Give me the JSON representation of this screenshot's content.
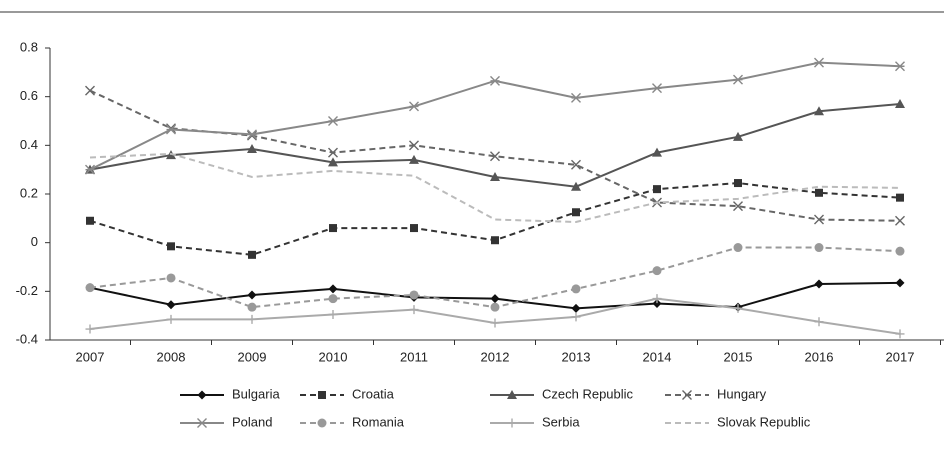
{
  "chart_data": {
    "type": "line",
    "categories": [
      "2007",
      "2008",
      "2009",
      "2010",
      "2011",
      "2012",
      "2013",
      "2014",
      "2015",
      "2016",
      "2017"
    ],
    "ylim": [
      -0.4,
      0.8
    ],
    "yticks": [
      -0.4,
      -0.2,
      0,
      0.2,
      0.4,
      0.6,
      0.8
    ],
    "grid": false,
    "legend": "bottom",
    "series": [
      {
        "name": "Bulgaria",
        "color": "#111111",
        "dash": false,
        "marker": "diamond",
        "values": [
          -0.185,
          -0.255,
          -0.215,
          -0.19,
          -0.225,
          -0.23,
          -0.27,
          -0.25,
          -0.265,
          -0.17,
          -0.165
        ]
      },
      {
        "name": "Croatia",
        "color": "#333333",
        "dash": true,
        "marker": "square",
        "values": [
          0.09,
          -0.015,
          -0.05,
          0.06,
          0.06,
          0.01,
          0.125,
          0.22,
          0.245,
          0.205,
          0.185
        ]
      },
      {
        "name": "Czech Republic",
        "color": "#555555",
        "dash": false,
        "marker": "triangle",
        "values": [
          0.3,
          0.36,
          0.385,
          0.33,
          0.34,
          0.27,
          0.23,
          0.37,
          0.435,
          0.54,
          0.57
        ]
      },
      {
        "name": "Hungary",
        "color": "#666666",
        "dash": true,
        "marker": "x",
        "values": [
          0.625,
          0.47,
          0.44,
          0.37,
          0.4,
          0.355,
          0.32,
          0.165,
          0.15,
          0.095,
          0.09
        ]
      },
      {
        "name": "Poland",
        "color": "#888888",
        "dash": false,
        "marker": "asterisk",
        "values": [
          0.3,
          0.465,
          0.445,
          0.5,
          0.56,
          0.665,
          0.595,
          0.635,
          0.67,
          0.74,
          0.725
        ]
      },
      {
        "name": "Romania",
        "color": "#999999",
        "dash": true,
        "marker": "circle",
        "values": [
          -0.185,
          -0.145,
          -0.265,
          -0.23,
          -0.215,
          -0.265,
          -0.19,
          -0.115,
          -0.02,
          -0.02,
          -0.035
        ]
      },
      {
        "name": "Serbia",
        "color": "#aaaaaa",
        "dash": false,
        "marker": "plus",
        "values": [
          -0.355,
          -0.315,
          -0.315,
          -0.295,
          -0.275,
          -0.33,
          -0.305,
          -0.23,
          -0.27,
          -0.325,
          -0.375
        ]
      },
      {
        "name": "Slovak Republic",
        "color": "#bbbbbb",
        "dash": true,
        "marker": "none",
        "values": [
          0.35,
          0.365,
          0.27,
          0.295,
          0.275,
          0.095,
          0.085,
          0.165,
          0.18,
          0.23,
          0.225
        ]
      }
    ]
  }
}
